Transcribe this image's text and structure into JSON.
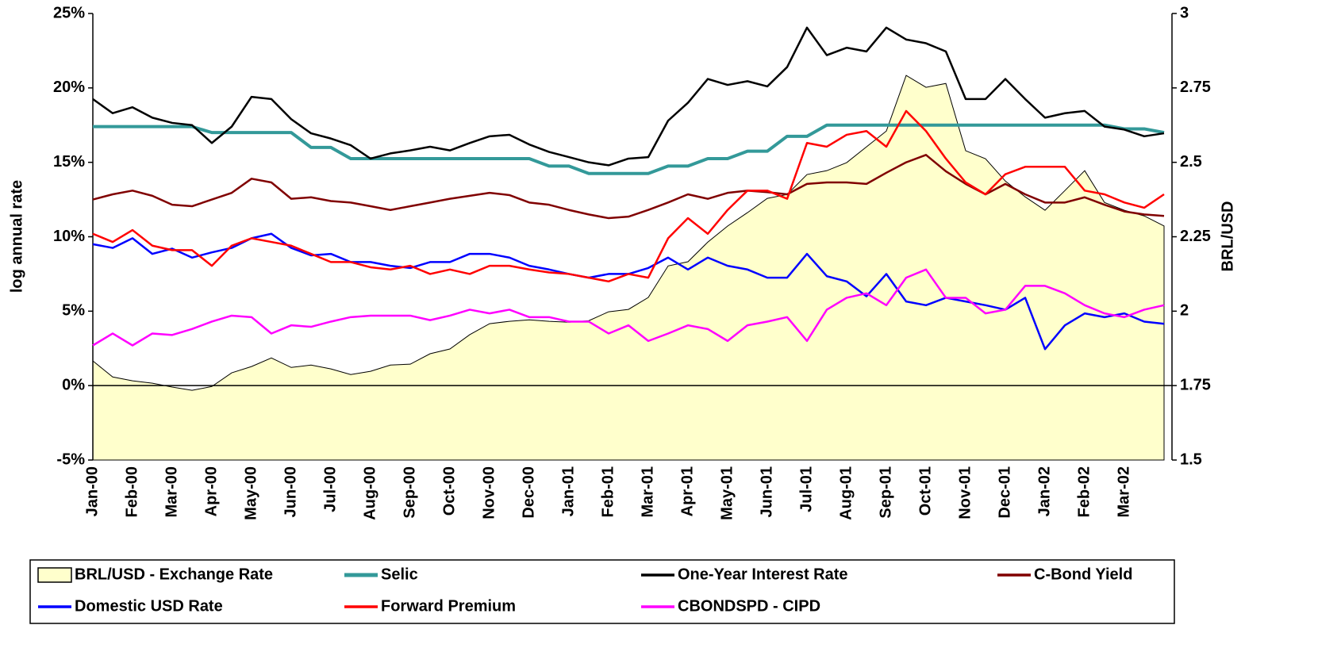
{
  "chart_data": {
    "type": "line",
    "ylabel": "log annual rate",
    "y2label": "BRL/USD",
    "categories": [
      "Jan-00",
      null,
      "Feb-00",
      null,
      "Mar-00",
      null,
      "Apr-00",
      null,
      "May-00",
      null,
      "Jun-00",
      null,
      "Jul-00",
      null,
      "Aug-00",
      null,
      "Sep-00",
      null,
      "Oct-00",
      null,
      "Nov-00",
      null,
      "Dec-00",
      null,
      "Jan-01",
      null,
      "Feb-01",
      null,
      "Mar-01",
      null,
      "Apr-01",
      null,
      "May-01",
      null,
      "Jun-01",
      null,
      "Jul-01",
      null,
      "Aug-01",
      null,
      "Sep-01",
      null,
      "Oct-01",
      null,
      "Nov-01",
      null,
      "Dec-01",
      null,
      "Jan-02",
      null,
      "Feb-02",
      null,
      "Mar-02",
      null,
      null
    ],
    "ylim": [
      -5,
      25
    ],
    "yticks": [
      {
        "value": -5,
        "label": "-5%"
      },
      {
        "value": 0,
        "label": "0%"
      },
      {
        "value": 5,
        "label": "5%"
      },
      {
        "value": 10,
        "label": "10%"
      },
      {
        "value": 15,
        "label": "15%"
      },
      {
        "value": 20,
        "label": "20%"
      },
      {
        "value": 25,
        "label": "25%"
      }
    ],
    "y2lim": [
      1.5,
      3
    ],
    "y2ticks": [
      1.5,
      1.75,
      2,
      2.25,
      2.5,
      2.75,
      3
    ],
    "legend": "bottom",
    "series": [
      {
        "name": "BRL/USD - Exchange Rate",
        "type": "area",
        "axis": "y2",
        "color": "#ffffcc",
        "line_width": 1,
        "values": [
          1.833,
          1.779,
          1.766,
          1.758,
          1.745,
          1.734,
          1.747,
          1.793,
          1.814,
          1.843,
          1.811,
          1.819,
          1.806,
          1.787,
          1.798,
          1.819,
          1.822,
          1.857,
          1.873,
          1.921,
          1.958,
          1.966,
          1.971,
          1.966,
          1.963,
          1.968,
          1.998,
          2.006,
          2.046,
          2.152,
          2.166,
          2.232,
          2.286,
          2.331,
          2.379,
          2.392,
          2.459,
          2.472,
          2.499,
          2.552,
          2.605,
          2.792,
          2.752,
          2.765,
          2.539,
          2.512,
          2.437,
          2.384,
          2.339,
          2.405,
          2.472,
          2.365,
          2.339,
          2.32,
          2.286
        ]
      },
      {
        "name": "Selic",
        "type": "line",
        "color": "#339999",
        "line_width": 4,
        "values": [
          17.4,
          17.4,
          17.4,
          17.4,
          17.4,
          17.4,
          17,
          17,
          17,
          17,
          17,
          16,
          16,
          15.25,
          15.25,
          15.25,
          15.25,
          15.25,
          15.25,
          15.25,
          15.25,
          15.25,
          15.25,
          14.75,
          14.75,
          14.25,
          14.25,
          14.25,
          14.25,
          14.75,
          14.75,
          15.25,
          15.25,
          15.75,
          15.75,
          16.75,
          16.75,
          17.5,
          17.5,
          17.5,
          17.5,
          17.5,
          17.5,
          17.5,
          17.5,
          17.5,
          17.5,
          17.5,
          17.5,
          17.5,
          17.5,
          17.5,
          17.25,
          17.25,
          17
        ]
      },
      {
        "name": "One-Year Interest Rate",
        "type": "line",
        "color": "#000000",
        "line_width": 2.5,
        "values": [
          19.25,
          18.3,
          18.7,
          18,
          17.65,
          17.5,
          16.3,
          17.4,
          19.4,
          19.25,
          17.9,
          16.95,
          16.6,
          16.15,
          15.25,
          15.6,
          15.8,
          16.05,
          15.8,
          16.3,
          16.75,
          16.85,
          16.2,
          15.7,
          15.35,
          15,
          14.8,
          15.25,
          15.35,
          17.8,
          19,
          20.6,
          20.2,
          20.45,
          20.1,
          21.4,
          24.05,
          22.2,
          22.7,
          22.45,
          24.05,
          23.25,
          23,
          22.45,
          19.25,
          19.25,
          20.6,
          19.25,
          18,
          18.3,
          18.45,
          17.4,
          17.2,
          16.75,
          16.95
        ]
      },
      {
        "name": "C-Bond Yield",
        "type": "line",
        "color": "#800000",
        "line_width": 2.5,
        "values": [
          12.5,
          12.85,
          13.1,
          12.75,
          12.15,
          12.05,
          12.5,
          12.95,
          13.9,
          13.65,
          12.55,
          12.65,
          12.4,
          12.3,
          12.05,
          11.8,
          12.05,
          12.3,
          12.55,
          12.75,
          12.95,
          12.8,
          12.3,
          12.15,
          11.8,
          11.5,
          11.25,
          11.35,
          11.8,
          12.3,
          12.85,
          12.55,
          12.95,
          13.1,
          13,
          12.85,
          13.55,
          13.65,
          13.65,
          13.55,
          14.3,
          15,
          15.5,
          14.4,
          13.55,
          12.85,
          13.55,
          12.85,
          12.3,
          12.3,
          12.65,
          12.15,
          11.7,
          11.5,
          11.4
        ]
      },
      {
        "name": "Domestic USD Rate",
        "type": "line",
        "color": "#0000ff",
        "line_width": 2.5,
        "values": [
          9.5,
          9.25,
          9.9,
          8.85,
          9.2,
          8.6,
          8.95,
          9.25,
          9.9,
          10.2,
          9.25,
          8.75,
          8.85,
          8.3,
          8.3,
          8.05,
          7.9,
          8.3,
          8.3,
          8.85,
          8.85,
          8.6,
          8.05,
          7.8,
          7.5,
          7.25,
          7.5,
          7.5,
          7.9,
          8.6,
          7.8,
          8.6,
          8.05,
          7.8,
          7.25,
          7.25,
          8.85,
          7.35,
          7,
          6,
          7.5,
          5.65,
          5.4,
          5.9,
          5.65,
          5.4,
          5.1,
          5.9,
          2.45,
          4.05,
          4.85,
          4.6,
          4.85,
          4.3,
          4.15
        ]
      },
      {
        "name": "Forward Premium",
        "type": "line",
        "color": "#ff0000",
        "line_width": 2.5,
        "values": [
          10.2,
          9.65,
          10.45,
          9.4,
          9.1,
          9.1,
          8.05,
          9.4,
          9.9,
          9.65,
          9.4,
          8.85,
          8.3,
          8.3,
          7.95,
          7.8,
          8.05,
          7.5,
          7.8,
          7.5,
          8.05,
          8.05,
          7.8,
          7.6,
          7.5,
          7.25,
          7,
          7.5,
          7.25,
          9.9,
          11.25,
          10.2,
          11.8,
          13.1,
          13.1,
          12.55,
          16.3,
          16.05,
          16.85,
          17.1,
          16.05,
          18.45,
          17.1,
          15.25,
          13.65,
          12.85,
          14.2,
          14.7,
          14.7,
          14.7,
          13.1,
          12.85,
          12.3,
          11.95,
          12.85
        ]
      },
      {
        "name": "CBONDSPD - CIPD",
        "type": "line",
        "color": "#ff00ff",
        "line_width": 2.5,
        "values": [
          2.7,
          3.5,
          2.7,
          3.5,
          3.4,
          3.8,
          4.3,
          4.7,
          4.6,
          3.5,
          4.05,
          3.95,
          4.3,
          4.6,
          4.7,
          4.7,
          4.7,
          4.4,
          4.7,
          5.1,
          4.85,
          5.1,
          4.6,
          4.6,
          4.3,
          4.3,
          3.5,
          4.05,
          3,
          3.5,
          4.05,
          3.8,
          3,
          4.05,
          4.3,
          4.6,
          3,
          5.1,
          5.9,
          6.2,
          5.4,
          7.25,
          7.8,
          5.9,
          5.9,
          4.85,
          5.1,
          6.7,
          6.7,
          6.2,
          5.4,
          4.85,
          4.6,
          5.1,
          5.4
        ]
      }
    ]
  }
}
